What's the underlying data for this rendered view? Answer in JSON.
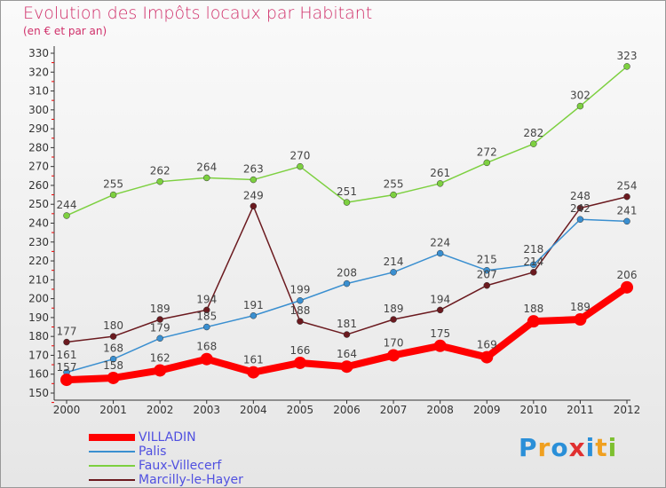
{
  "chart_data": {
    "type": "line",
    "title": "Evolution des Impôts locaux par Habitant",
    "subtitle": "(en € et par an)",
    "xlabel": "",
    "ylabel": "",
    "x": [
      "2000",
      "2001",
      "2002",
      "2003",
      "2004",
      "2005",
      "2006",
      "2007",
      "2008",
      "2009",
      "2010",
      "2011",
      "2012"
    ],
    "ylim": [
      150,
      330
    ],
    "yticks": [
      150,
      160,
      170,
      180,
      190,
      200,
      210,
      220,
      230,
      240,
      250,
      260,
      270,
      280,
      290,
      300,
      310,
      320,
      330
    ],
    "grid": false,
    "legend_position": "bottom-left",
    "series": [
      {
        "name": "VILLADIN",
        "color": "#ff0000",
        "values": [
          157,
          158,
          162,
          168,
          161,
          166,
          164,
          170,
          175,
          169,
          188,
          189,
          206
        ]
      },
      {
        "name": "Palis",
        "color": "#3a8fd0",
        "values": [
          161,
          168,
          179,
          185,
          191,
          199,
          208,
          214,
          224,
          215,
          218,
          242,
          241
        ]
      },
      {
        "name": "Faux-Villecerf",
        "color": "#7dd040",
        "values": [
          244,
          255,
          262,
          264,
          263,
          270,
          251,
          255,
          261,
          272,
          282,
          302,
          323
        ]
      },
      {
        "name": "Marcilly-le-Hayer",
        "color": "#6b1a1f",
        "values": [
          177,
          180,
          189,
          194,
          249,
          188,
          181,
          189,
          194,
          207,
          214,
          248,
          254
        ]
      }
    ]
  },
  "logo": {
    "text": "Proxiti"
  }
}
